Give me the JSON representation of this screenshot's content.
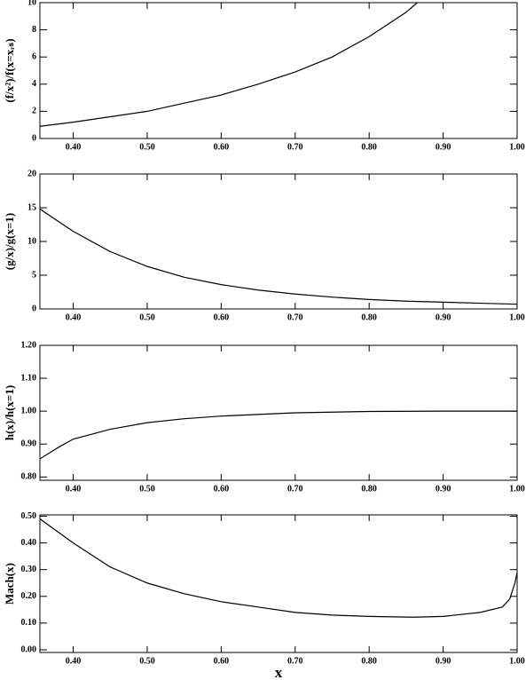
{
  "chart_data": [
    {
      "type": "line",
      "ylabel": "(f/x²)/f(x=xᵣₛ)",
      "xlim": [
        0.355,
        1.0
      ],
      "ylim": [
        0,
        10
      ],
      "xticks": [
        {
          "value": 0.4,
          "label": "0.40"
        },
        {
          "value": 0.5,
          "label": "0.50"
        },
        {
          "value": 0.6,
          "label": "0.60"
        },
        {
          "value": 0.7,
          "label": "0.70"
        },
        {
          "value": 0.8,
          "label": "0.80"
        },
        {
          "value": 0.9,
          "label": "0.90"
        },
        {
          "value": 1.0,
          "label": "1.00"
        }
      ],
      "yticks": [
        0,
        2,
        4,
        6,
        8,
        10
      ],
      "series": [
        {
          "color": "#000000",
          "x": [
            0.355,
            0.4,
            0.45,
            0.5,
            0.55,
            0.6,
            0.65,
            0.7,
            0.75,
            0.8,
            0.85,
            0.865
          ],
          "values": [
            0.9,
            1.2,
            1.6,
            2.0,
            2.6,
            3.2,
            4.0,
            4.9,
            6.0,
            7.5,
            9.3,
            10
          ]
        }
      ]
    },
    {
      "type": "line",
      "ylabel": "(g/x)/g(x=1)",
      "xlim": [
        0.355,
        1.0
      ],
      "ylim": [
        0,
        20
      ],
      "xticks": [
        {
          "value": 0.4,
          "label": "0.40"
        },
        {
          "value": 0.5,
          "label": "0.50"
        },
        {
          "value": 0.6,
          "label": "0.60"
        },
        {
          "value": 0.7,
          "label": "0.70"
        },
        {
          "value": 0.8,
          "label": "0.80"
        },
        {
          "value": 0.9,
          "label": "0.90"
        },
        {
          "value": 1.0,
          "label": "1.00"
        }
      ],
      "yticks": [
        0,
        5,
        10,
        15,
        20
      ],
      "series": [
        {
          "color": "#000000",
          "x": [
            0.355,
            0.4,
            0.45,
            0.5,
            0.55,
            0.6,
            0.65,
            0.7,
            0.75,
            0.8,
            0.85,
            0.9,
            0.95,
            1.0
          ],
          "values": [
            14.8,
            11.5,
            8.5,
            6.3,
            4.7,
            3.6,
            2.8,
            2.2,
            1.75,
            1.4,
            1.15,
            1.0,
            0.85,
            0.7
          ]
        }
      ]
    },
    {
      "type": "line",
      "ylabel": "h(x)/h(x=1)",
      "xlim": [
        0.355,
        1.0
      ],
      "ylim": [
        0.79,
        1.2
      ],
      "xticks": [
        {
          "value": 0.4,
          "label": "0.40"
        },
        {
          "value": 0.5,
          "label": "0.50"
        },
        {
          "value": 0.6,
          "label": "0.60"
        },
        {
          "value": 0.7,
          "label": "0.70"
        },
        {
          "value": 0.8,
          "label": "0.80"
        },
        {
          "value": 0.9,
          "label": "0.90"
        },
        {
          "value": 1.0,
          "label": "1.00"
        }
      ],
      "yticks": [
        {
          "value": 0.8,
          "label": "0.80"
        },
        {
          "value": 0.9,
          "label": "0.90"
        },
        {
          "value": 1.0,
          "label": "1.00"
        },
        {
          "value": 1.1,
          "label": "1.10"
        },
        {
          "value": 1.2,
          "label": "1.20"
        }
      ],
      "series": [
        {
          "color": "#000000",
          "x": [
            0.355,
            0.38,
            0.4,
            0.45,
            0.5,
            0.55,
            0.6,
            0.7,
            0.8,
            0.9,
            1.0
          ],
          "values": [
            0.855,
            0.89,
            0.915,
            0.945,
            0.965,
            0.977,
            0.985,
            0.995,
            0.999,
            1.0,
            1.0
          ]
        }
      ]
    },
    {
      "type": "line",
      "ylabel": "Mach(x)",
      "xlabel": "x",
      "xlim": [
        0.355,
        1.0
      ],
      "ylim": [
        -0.01,
        0.505
      ],
      "xticks": [
        {
          "value": 0.4,
          "label": "0.40"
        },
        {
          "value": 0.5,
          "label": "0.50"
        },
        {
          "value": 0.6,
          "label": "0.60"
        },
        {
          "value": 0.7,
          "label": "0.70"
        },
        {
          "value": 0.8,
          "label": "0.80"
        },
        {
          "value": 0.9,
          "label": "0.90"
        },
        {
          "value": 1.0,
          "label": "1.00"
        }
      ],
      "yticks": [
        {
          "value": 0.0,
          "label": "0.00"
        },
        {
          "value": 0.1,
          "label": "0.10"
        },
        {
          "value": 0.2,
          "label": "0.20"
        },
        {
          "value": 0.3,
          "label": "0.30"
        },
        {
          "value": 0.4,
          "label": "0.40"
        },
        {
          "value": 0.5,
          "label": "0.50"
        }
      ],
      "series": [
        {
          "color": "#000000",
          "x": [
            0.355,
            0.4,
            0.45,
            0.5,
            0.55,
            0.6,
            0.65,
            0.7,
            0.75,
            0.8,
            0.86,
            0.9,
            0.95,
            0.98,
            0.99,
            0.997,
            1.0
          ],
          "values": [
            0.49,
            0.4,
            0.31,
            0.25,
            0.21,
            0.18,
            0.16,
            0.14,
            0.13,
            0.125,
            0.122,
            0.125,
            0.14,
            0.16,
            0.19,
            0.25,
            0.29
          ]
        }
      ]
    }
  ]
}
